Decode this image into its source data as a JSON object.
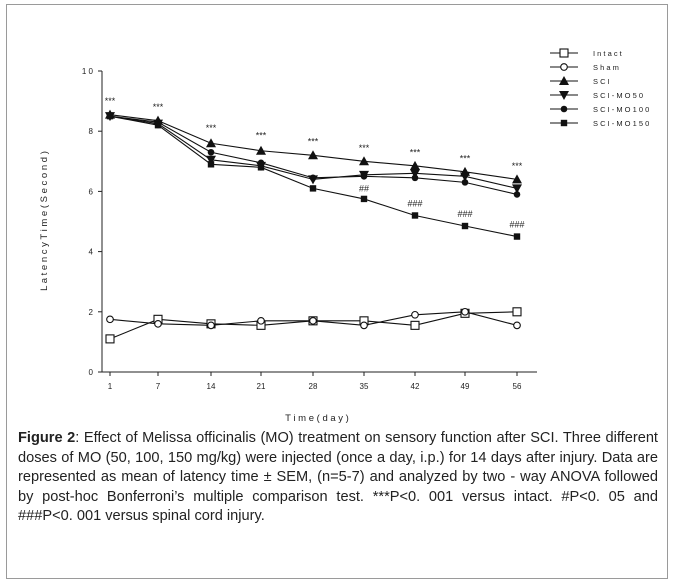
{
  "chart_data": {
    "type": "line",
    "xlabel": "T i m e  ( d a y )",
    "ylabel": "L a t e n c y   T i m e   ( S e c o n d )",
    "categories": [
      "1",
      "7",
      "14",
      "21",
      "28",
      "35",
      "42",
      "49",
      "56"
    ],
    "y_ticks": [
      "0",
      "2",
      "4",
      "6",
      "8",
      "1 0"
    ],
    "ylim": [
      0,
      10
    ],
    "grid": false,
    "legend_position": "top-right",
    "series": [
      {
        "name": "I n t a c t",
        "marker": "square-open",
        "values": [
          1.1,
          1.75,
          1.6,
          1.55,
          1.7,
          1.7,
          1.55,
          1.95,
          2.0
        ]
      },
      {
        "name": "S h a m",
        "marker": "circle-open",
        "values": [
          1.75,
          1.6,
          1.55,
          1.7,
          1.7,
          1.55,
          1.9,
          2.0,
          1.55
        ]
      },
      {
        "name": "S C I",
        "marker": "triangle-up",
        "values": [
          8.55,
          8.35,
          7.6,
          7.35,
          7.2,
          7.0,
          6.85,
          6.65,
          6.4
        ]
      },
      {
        "name": "S C I - M O  5 0",
        "marker": "triangle-down",
        "values": [
          8.5,
          8.25,
          7.05,
          6.85,
          6.4,
          6.55,
          6.6,
          6.5,
          6.1
        ]
      },
      {
        "name": "S C I - M O  1 0 0",
        "marker": "circle",
        "values": [
          8.5,
          8.3,
          7.3,
          6.95,
          6.45,
          6.5,
          6.45,
          6.3,
          5.9
        ]
      },
      {
        "name": "S C I - M O  1 5 0",
        "marker": "square",
        "values": [
          8.5,
          8.2,
          6.9,
          6.8,
          6.1,
          5.75,
          5.2,
          4.85,
          4.5
        ]
      }
    ],
    "annotations": [
      {
        "category": "1",
        "text": "***",
        "y": 8.9
      },
      {
        "category": "7",
        "text": "***",
        "y": 8.7
      },
      {
        "category": "14",
        "text": "***",
        "y": 8.0
      },
      {
        "category": "21",
        "text": "***",
        "y": 7.75
      },
      {
        "category": "28",
        "text": "***",
        "y": 7.55
      },
      {
        "category": "35",
        "text": "***",
        "y": 7.35
      },
      {
        "category": "42",
        "text": "***",
        "y": 7.2
      },
      {
        "category": "49",
        "text": "***",
        "y": 7.0
      },
      {
        "category": "56",
        "text": "***",
        "y": 6.75
      },
      {
        "category": "35",
        "text": "##",
        "y": 6.0
      },
      {
        "category": "42",
        "text": "###",
        "y": 5.5
      },
      {
        "category": "49",
        "text": "###",
        "y": 5.15
      },
      {
        "category": "56",
        "text": "###",
        "y": 4.8
      }
    ]
  },
  "caption": {
    "label": "Figure 2",
    "text": ": Effect of Melissa officinalis (MO) treatment on sensory function after SCI. Three different doses of MO (50, 100, 150 mg/kg) were injected (once a day, i.p.) for 14 days after injury. Data are represented as mean of latency time ± SEM, (n=5-7) and analyzed by two - way ANOVA followed by post-hoc Bonferroni’s multiple comparison test. ***P<0. 001 versus intact. #P<0. 05 and ###P<0. 001 versus spinal cord injury."
  }
}
